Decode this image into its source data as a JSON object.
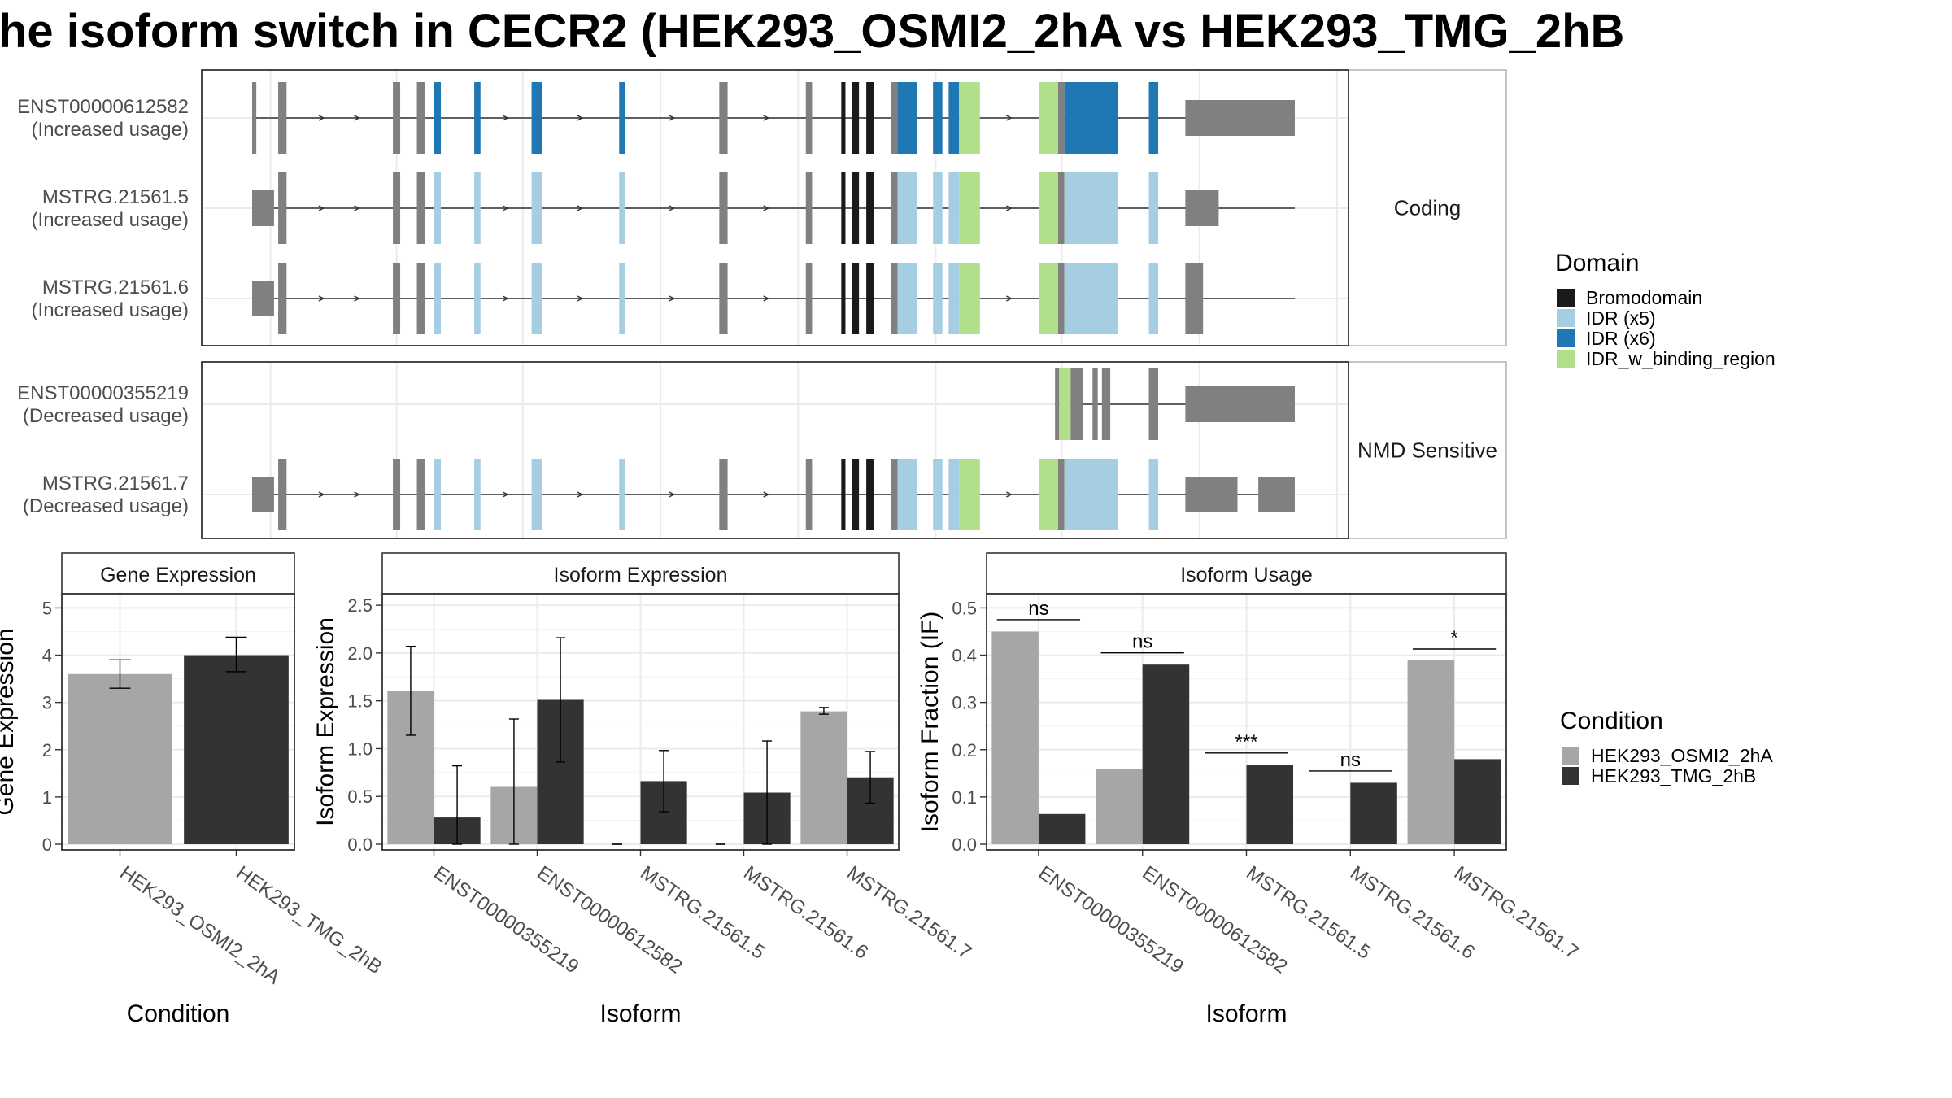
{
  "title": "he isoform switch in CECR2 (HEK293_OSMI2_2hA vs HEK293_TMG_2hB",
  "colors": {
    "cond1": "#a6a6a6",
    "cond2": "#333333",
    "exon": "#808080",
    "bromodomain": "#1a1a1a",
    "idr5": "#a6cee3",
    "idr6": "#1f78b4",
    "idr_bind": "#b2df8a",
    "grid": "#ebebeb",
    "strip": "#ffffff"
  },
  "structure": {
    "panels": [
      {
        "label": "Coding",
        "transcripts": [
          {
            "name": "ENST00000612582",
            "usage": "(Increased usage)",
            "intron": [
              0.0,
              1.0
            ],
            "exons": [
              [
                0.0,
                0.004,
                "exon"
              ],
              [
                0.025,
                0.033,
                "exon"
              ],
              [
                0.135,
                0.142,
                "exon"
              ],
              [
                0.158,
                0.166,
                "exon"
              ],
              [
                0.174,
                0.181,
                "idr6"
              ],
              [
                0.213,
                0.219,
                "idr6"
              ],
              [
                0.268,
                0.278,
                "idr6"
              ],
              [
                0.352,
                0.358,
                "idr6"
              ],
              [
                0.448,
                0.456,
                "exon"
              ],
              [
                0.531,
                0.537,
                "exon"
              ],
              [
                0.565,
                0.569,
                "bromodomain"
              ],
              [
                0.575,
                0.582,
                "bromodomain"
              ],
              [
                0.589,
                0.596,
                "bromodomain"
              ],
              [
                0.613,
                0.619,
                "exon"
              ],
              [
                0.619,
                0.638,
                "idr6"
              ],
              [
                0.653,
                0.662,
                "idr6"
              ],
              [
                0.668,
                0.678,
                "idr6"
              ],
              [
                0.678,
                0.698,
                "idr_bind"
              ],
              [
                0.755,
                0.773,
                "idr_bind"
              ],
              [
                0.773,
                0.779,
                "exon"
              ],
              [
                0.779,
                0.83,
                "idr6"
              ],
              [
                0.86,
                0.869,
                "idr6"
              ],
              [
                0.895,
                1.0,
                "exon"
              ]
            ]
          },
          {
            "name": "MSTRG.21561.5",
            "usage": "(Increased usage)",
            "intron": [
              0.0,
              1.0
            ],
            "exons": [
              [
                0.0,
                0.021,
                "exon"
              ],
              [
                0.025,
                0.033,
                "exon"
              ],
              [
                0.135,
                0.142,
                "exon"
              ],
              [
                0.158,
                0.166,
                "exon"
              ],
              [
                0.174,
                0.181,
                "idr5"
              ],
              [
                0.213,
                0.219,
                "idr5"
              ],
              [
                0.268,
                0.278,
                "idr5"
              ],
              [
                0.352,
                0.358,
                "idr5"
              ],
              [
                0.448,
                0.456,
                "exon"
              ],
              [
                0.531,
                0.537,
                "exon"
              ],
              [
                0.565,
                0.569,
                "bromodomain"
              ],
              [
                0.575,
                0.582,
                "bromodomain"
              ],
              [
                0.589,
                0.596,
                "bromodomain"
              ],
              [
                0.613,
                0.619,
                "exon"
              ],
              [
                0.619,
                0.638,
                "idr5"
              ],
              [
                0.653,
                0.662,
                "idr5"
              ],
              [
                0.668,
                0.678,
                "idr5"
              ],
              [
                0.678,
                0.698,
                "idr_bind"
              ],
              [
                0.755,
                0.773,
                "idr_bind"
              ],
              [
                0.773,
                0.779,
                "exon"
              ],
              [
                0.779,
                0.83,
                "idr5"
              ],
              [
                0.86,
                0.869,
                "idr5"
              ],
              [
                0.895,
                0.927,
                "exon"
              ]
            ]
          },
          {
            "name": "MSTRG.21561.6",
            "usage": "(Increased usage)",
            "intron": [
              0.0,
              1.0
            ],
            "exons": [
              [
                0.0,
                0.021,
                "exon"
              ],
              [
                0.025,
                0.033,
                "exon"
              ],
              [
                0.135,
                0.142,
                "exon"
              ],
              [
                0.158,
                0.166,
                "exon"
              ],
              [
                0.174,
                0.181,
                "idr5"
              ],
              [
                0.213,
                0.219,
                "idr5"
              ],
              [
                0.268,
                0.278,
                "idr5"
              ],
              [
                0.352,
                0.358,
                "idr5"
              ],
              [
                0.448,
                0.456,
                "exon"
              ],
              [
                0.531,
                0.537,
                "exon"
              ],
              [
                0.565,
                0.569,
                "bromodomain"
              ],
              [
                0.575,
                0.582,
                "bromodomain"
              ],
              [
                0.589,
                0.596,
                "bromodomain"
              ],
              [
                0.613,
                0.619,
                "exon"
              ],
              [
                0.619,
                0.638,
                "idr5"
              ],
              [
                0.653,
                0.662,
                "idr5"
              ],
              [
                0.668,
                0.678,
                "idr5"
              ],
              [
                0.678,
                0.698,
                "idr_bind"
              ],
              [
                0.755,
                0.773,
                "idr_bind"
              ],
              [
                0.773,
                0.779,
                "exon"
              ],
              [
                0.779,
                0.83,
                "idr5"
              ],
              [
                0.86,
                0.869,
                "idr5"
              ],
              [
                0.895,
                0.912,
                "exon"
              ]
            ]
          }
        ]
      },
      {
        "label": "NMD Sensitive",
        "transcripts": [
          {
            "name": "ENST00000355219",
            "usage": "(Decreased usage)",
            "intron": [
              0.77,
              1.0
            ],
            "exons": [
              [
                0.77,
                0.774,
                "exon"
              ],
              [
                0.774,
                0.785,
                "idr_bind"
              ],
              [
                0.785,
                0.797,
                "exon"
              ],
              [
                0.806,
                0.811,
                "exon"
              ],
              [
                0.815,
                0.823,
                "exon"
              ],
              [
                0.86,
                0.869,
                "exon"
              ],
              [
                0.895,
                1.0,
                "exon"
              ]
            ]
          },
          {
            "name": "MSTRG.21561.7",
            "usage": "(Decreased usage)",
            "intron": [
              0.0,
              1.0
            ],
            "exons": [
              [
                0.0,
                0.021,
                "exon"
              ],
              [
                0.025,
                0.033,
                "exon"
              ],
              [
                0.135,
                0.142,
                "exon"
              ],
              [
                0.158,
                0.166,
                "exon"
              ],
              [
                0.174,
                0.181,
                "idr5"
              ],
              [
                0.213,
                0.219,
                "idr5"
              ],
              [
                0.268,
                0.278,
                "idr5"
              ],
              [
                0.352,
                0.358,
                "idr5"
              ],
              [
                0.448,
                0.456,
                "exon"
              ],
              [
                0.531,
                0.537,
                "exon"
              ],
              [
                0.565,
                0.569,
                "bromodomain"
              ],
              [
                0.575,
                0.582,
                "bromodomain"
              ],
              [
                0.589,
                0.596,
                "bromodomain"
              ],
              [
                0.613,
                0.619,
                "exon"
              ],
              [
                0.619,
                0.638,
                "idr5"
              ],
              [
                0.653,
                0.662,
                "idr5"
              ],
              [
                0.668,
                0.678,
                "idr5"
              ],
              [
                0.678,
                0.698,
                "idr_bind"
              ],
              [
                0.755,
                0.773,
                "idr_bind"
              ],
              [
                0.773,
                0.779,
                "exon"
              ],
              [
                0.779,
                0.83,
                "idr5"
              ],
              [
                0.86,
                0.869,
                "idr5"
              ],
              [
                0.895,
                0.945,
                "exon"
              ],
              [
                0.965,
                1.0,
                "exon"
              ]
            ]
          }
        ]
      }
    ]
  },
  "legend": {
    "domain_title": "Domain",
    "domain_items": [
      {
        "label": "Bromodomain",
        "color_key": "bromodomain"
      },
      {
        "label": "IDR (x5)",
        "color_key": "idr5"
      },
      {
        "label": "IDR (x6)",
        "color_key": "idr6"
      },
      {
        "label": "IDR_w_binding_region",
        "color_key": "idr_bind"
      }
    ],
    "condition_title": "Condition",
    "condition_items": [
      {
        "label": "HEK293_OSMI2_2hA",
        "color_key": "cond1"
      },
      {
        "label": "HEK293_TMG_2hB",
        "color_key": "cond2"
      }
    ]
  },
  "chart_data": [
    {
      "type": "bar",
      "title": "Gene Expression",
      "xlabel": "Condition",
      "ylabel": "Gene Expression",
      "ylim": [
        0,
        5.3
      ],
      "yticks": [
        0,
        1,
        2,
        3,
        4,
        5
      ],
      "grouped": false,
      "categories": [
        "HEK293_OSMI2_2hA",
        "HEK293_TMG_2hB"
      ],
      "values": [
        3.6,
        4.0
      ],
      "err_low": [
        3.3,
        3.65
      ],
      "err_high": [
        3.9,
        4.38
      ]
    },
    {
      "type": "bar",
      "title": "Isoform Expression",
      "xlabel": "Isoform",
      "ylabel": "Isoform Expression",
      "ylim": [
        0,
        2.62
      ],
      "yticks": [
        0.0,
        0.5,
        1.0,
        1.5,
        2.0,
        2.5
      ],
      "yticklabels": [
        "0.0",
        "0.5",
        "1.0",
        "1.5",
        "2.0",
        "2.5"
      ],
      "grouped": true,
      "categories": [
        "ENST00000355219",
        "ENST00000612582",
        "MSTRG.21561.5",
        "MSTRG.21561.6",
        "MSTRG.21561.7"
      ],
      "series": [
        {
          "name": "HEK293_OSMI2_2hA",
          "values": [
            1.6,
            0.6,
            0.0,
            0.0,
            1.39
          ],
          "err_low": [
            1.14,
            0.0,
            0.0,
            0.0,
            1.36
          ],
          "err_high": [
            2.07,
            1.31,
            0.0,
            0.0,
            1.43
          ]
        },
        {
          "name": "HEK293_TMG_2hB",
          "values": [
            0.28,
            1.51,
            0.66,
            0.54,
            0.7
          ],
          "err_low": [
            0.0,
            0.86,
            0.34,
            0.0,
            0.43
          ],
          "err_high": [
            0.82,
            2.16,
            0.98,
            1.08,
            0.97
          ]
        }
      ]
    },
    {
      "type": "bar",
      "title": "Isoform Usage",
      "xlabel": "Isoform",
      "ylabel": "Isoform Fraction (IF)",
      "ylim": [
        0,
        0.53
      ],
      "yticks": [
        0.0,
        0.1,
        0.2,
        0.3,
        0.4,
        0.5
      ],
      "yticklabels": [
        "0.0",
        "0.1",
        "0.2",
        "0.3",
        "0.4",
        "0.5"
      ],
      "grouped": true,
      "categories": [
        "ENST00000355219",
        "ENST00000612582",
        "MSTRG.21561.5",
        "MSTRG.21561.6",
        "MSTRG.21561.7"
      ],
      "series": [
        {
          "name": "HEK293_OSMI2_2hA",
          "values": [
            0.45,
            0.16,
            0.0,
            0.0,
            0.39
          ]
        },
        {
          "name": "HEK293_TMG_2hB",
          "values": [
            0.064,
            0.38,
            0.168,
            0.13,
            0.18
          ]
        }
      ],
      "annotations": [
        {
          "category": 0,
          "y": 0.475,
          "label": "ns"
        },
        {
          "category": 1,
          "y": 0.405,
          "label": "ns"
        },
        {
          "category": 2,
          "y": 0.193,
          "label": "***"
        },
        {
          "category": 3,
          "y": 0.155,
          "label": "ns"
        },
        {
          "category": 4,
          "y": 0.413,
          "label": "*"
        }
      ]
    }
  ]
}
